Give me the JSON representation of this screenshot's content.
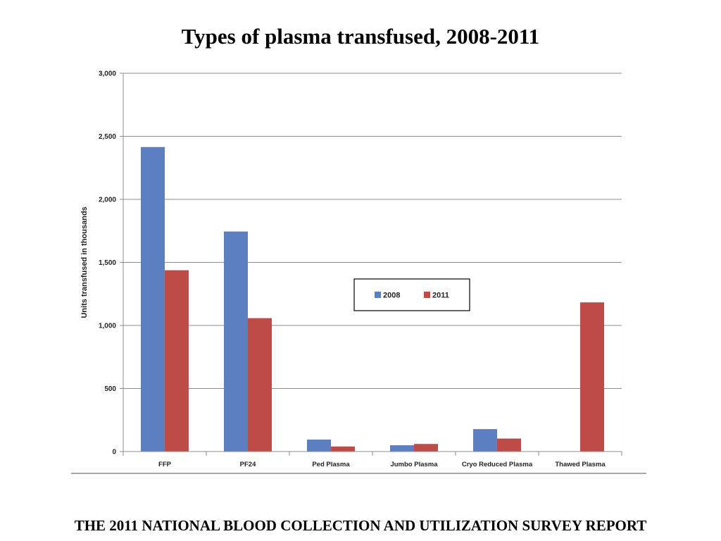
{
  "slide": {
    "title": "Types of plasma transfused, 2008-2011",
    "footer": "THE 2011 NATIONAL BLOOD COLLECTION AND UTILIZATION SURVEY REPORT"
  },
  "chart_data": {
    "type": "bar",
    "title": "Types of plasma transfused, 2008-2011",
    "xlabel": "",
    "ylabel": "Units transfused in thousands",
    "ylim": [
      0,
      3000
    ],
    "yticks": [
      0,
      500,
      1000,
      1500,
      2000,
      2500,
      3000
    ],
    "ytick_labels": [
      "0",
      "500",
      "1,000",
      "1,500",
      "2,000",
      "2,500",
      "3,000"
    ],
    "grid": true,
    "legend": "center-right",
    "categories": [
      "FFP",
      "PF24",
      "Ped Plasma",
      "Jumbo Plasma",
      "Cryo Reduced Plasma",
      "Thawed Plasma"
    ],
    "series": [
      {
        "name": "2008",
        "color": "#5B7FC0",
        "values": [
          2415,
          1745,
          95,
          50,
          178,
          0
        ]
      },
      {
        "name": "2011",
        "color": "#BE4B48",
        "values": [
          1438,
          1058,
          40,
          60,
          103,
          1183
        ]
      }
    ]
  }
}
